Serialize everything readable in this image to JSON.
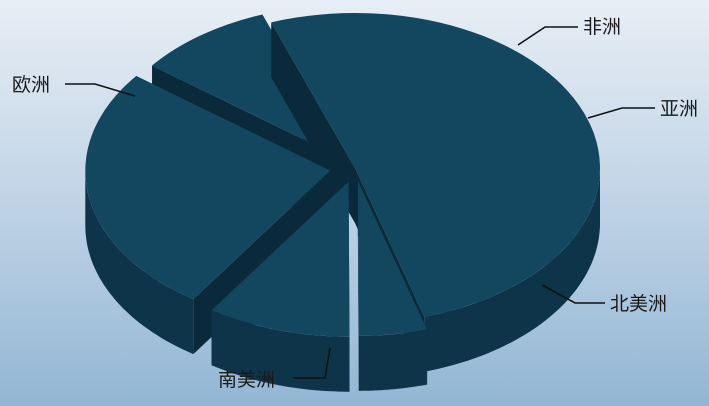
{
  "chart_data": {
    "type": "pie",
    "style": "3d-exploded",
    "categories": [
      "欧洲",
      "非洲",
      "亚洲",
      "北美洲",
      "南美洲"
    ],
    "values": [
      51,
      4.5,
      9.5,
      26,
      9
    ],
    "legend": "none",
    "colors": {
      "top": "#13465f",
      "side": "#0d3448",
      "dark": "#0a2a3b"
    }
  }
}
